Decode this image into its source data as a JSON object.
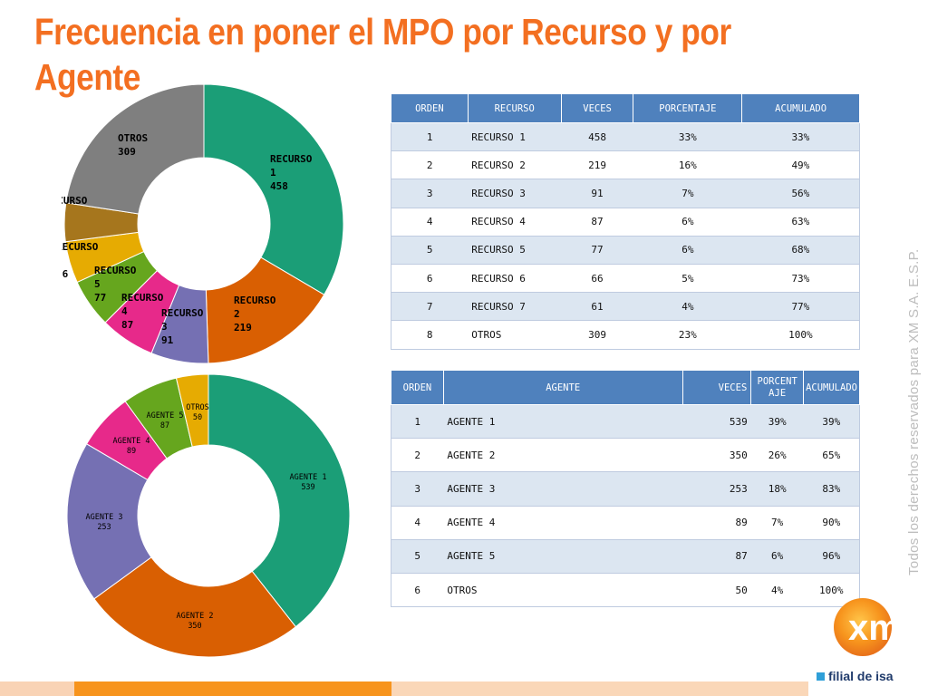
{
  "title": "Frecuencia en poner el MPO por Recurso y por Agente",
  "side_text": "Todos los derechos reservados para XM S.A. E.S.P.",
  "logo": {
    "mark": "xm",
    "tagline": "filial de isa"
  },
  "colors": {
    "title": "#f36f21",
    "header": "#4f81bd",
    "row_alt": "#dce6f1",
    "slices": [
      "#1b9e77",
      "#d95f02",
      "#7570b3",
      "#e7298a",
      "#66a61e",
      "#e6ab02",
      "#a6761d",
      "#7f7f7f"
    ],
    "agent_slices": [
      "#1b9e77",
      "#d95f02",
      "#7570b3",
      "#e7298a",
      "#66a61e",
      "#e6ab02"
    ]
  },
  "recurso_table": {
    "headers": [
      "ORDEN",
      "RECURSO",
      "VECES",
      "PORCENTAJE",
      "ACUMULADO"
    ],
    "rows": [
      [
        "1",
        "RECURSO 1",
        "458",
        "33%",
        "33%"
      ],
      [
        "2",
        "RECURSO 2",
        "219",
        "16%",
        "49%"
      ],
      [
        "3",
        "RECURSO 3",
        "91",
        "7%",
        "56%"
      ],
      [
        "4",
        "RECURSO 4",
        "87",
        "6%",
        "63%"
      ],
      [
        "5",
        "RECURSO 5",
        "77",
        "6%",
        "68%"
      ],
      [
        "6",
        "RECURSO 6",
        "66",
        "5%",
        "73%"
      ],
      [
        "7",
        "RECURSO 7",
        "61",
        "4%",
        "77%"
      ],
      [
        "8",
        "OTROS",
        "309",
        "23%",
        "100%"
      ]
    ]
  },
  "agente_table": {
    "headers": [
      "ORDEN",
      "AGENTE",
      "VECES",
      "PORCENTAJE",
      "ACUMULADO"
    ],
    "rows": [
      [
        "1",
        "AGENTE 1",
        "539",
        "39%",
        "39%"
      ],
      [
        "2",
        "AGENTE 2",
        "350",
        "26%",
        "65%"
      ],
      [
        "3",
        "AGENTE 3",
        "253",
        "18%",
        "83%"
      ],
      [
        "4",
        "AGENTE 4",
        "89",
        "7%",
        "90%"
      ],
      [
        "5",
        "AGENTE 5",
        "87",
        "6%",
        "96%"
      ],
      [
        "6",
        "OTROS",
        "50",
        "4%",
        "100%"
      ]
    ]
  },
  "chart_data": [
    {
      "type": "pie",
      "title": "",
      "categories": [
        "RECURSO 1",
        "RECURSO 2",
        "RECURSO 3",
        "RECURSO 4",
        "RECURSO 5",
        "RECURSO 6",
        "RECURSO 7",
        "OTROS"
      ],
      "values": [
        458,
        219,
        91,
        87,
        77,
        66,
        61,
        309
      ]
    },
    {
      "type": "pie",
      "title": "",
      "categories": [
        "AGENTE 1",
        "AGENTE 2",
        "AGENTE 3",
        "AGENTE 4",
        "AGENTE 5",
        "OTROS"
      ],
      "values": [
        539,
        350,
        253,
        89,
        87,
        50
      ]
    }
  ]
}
